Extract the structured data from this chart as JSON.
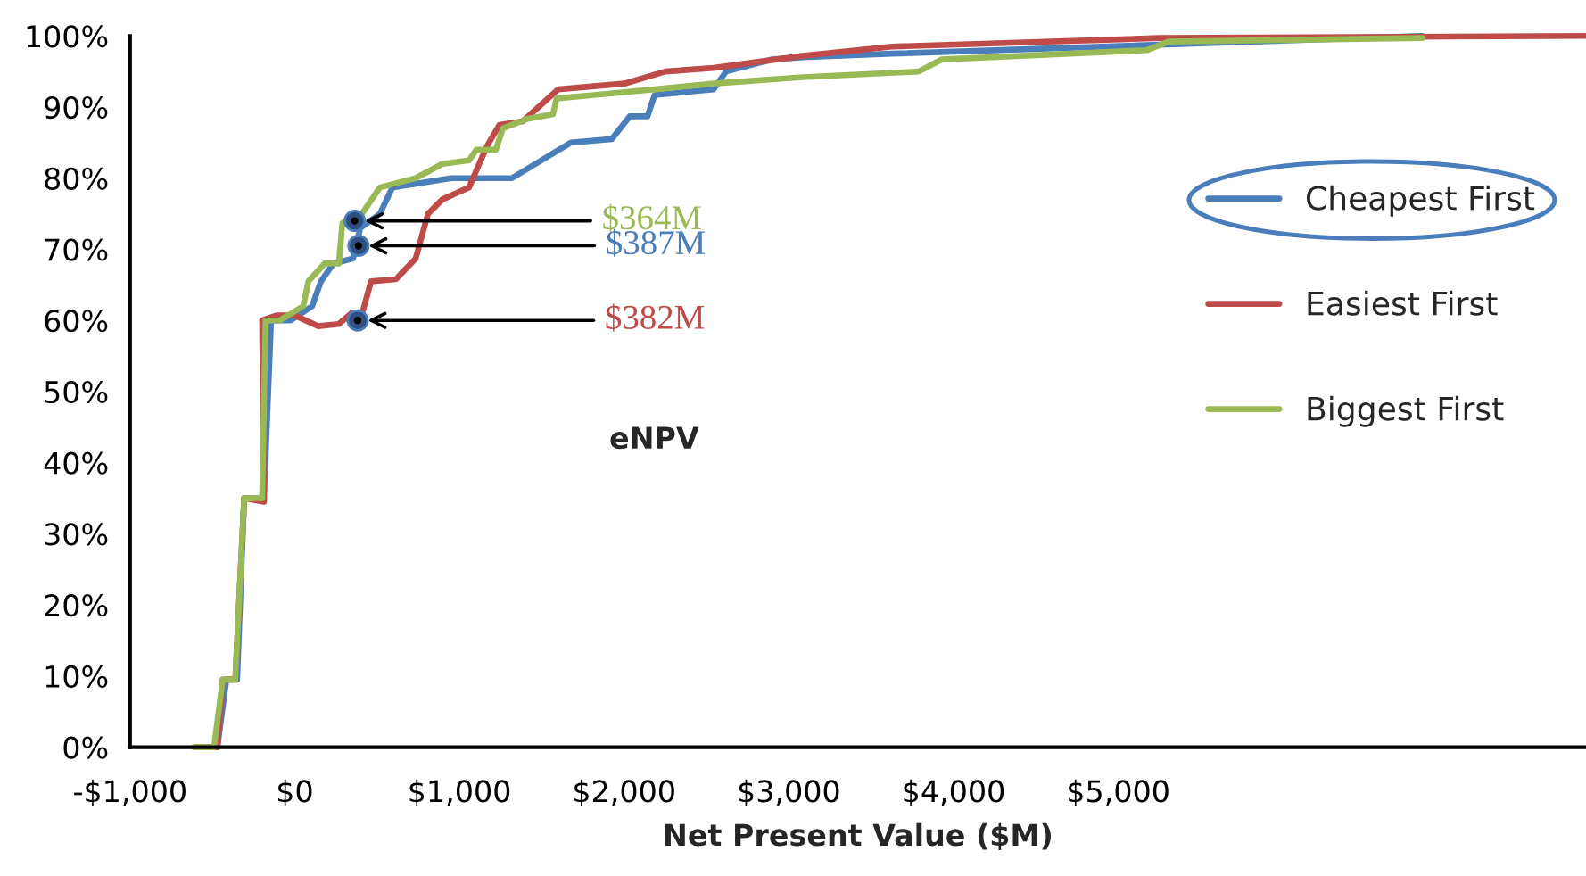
{
  "chart_data": {
    "type": "line",
    "xlabel": "Net Present Value ($M)",
    "xlim": [
      -1000,
      7840
    ],
    "ylim": [
      0,
      100
    ],
    "xticks": [
      {
        "value": -1000,
        "label": "-$1,000"
      },
      {
        "value": 0,
        "label": "$0"
      },
      {
        "value": 1000,
        "label": "$1,000"
      },
      {
        "value": 2000,
        "label": "$2,000"
      },
      {
        "value": 3000,
        "label": "$3,000"
      },
      {
        "value": 4000,
        "label": "$4,000"
      },
      {
        "value": 5000,
        "label": "$5,000"
      }
    ],
    "yticks": [
      {
        "value": 0,
        "label": "0%"
      },
      {
        "value": 10,
        "label": "10%"
      },
      {
        "value": 20,
        "label": "20%"
      },
      {
        "value": 30,
        "label": "30%"
      },
      {
        "value": 40,
        "label": "40%"
      },
      {
        "value": 50,
        "label": "50%"
      },
      {
        "value": 60,
        "label": "60%"
      },
      {
        "value": 70,
        "label": "70%"
      },
      {
        "value": 80,
        "label": "80%"
      },
      {
        "value": 90,
        "label": "90%"
      },
      {
        "value": 100,
        "label": "100%"
      }
    ],
    "grid": false,
    "legend": "right",
    "marker": "none",
    "line_style": "solid",
    "series": [
      {
        "name": "Cheapest First",
        "color": "#4a7ebb",
        "x": [
          -600,
          -470,
          -415,
          -350,
          -307,
          -187,
          -144,
          -25,
          105,
          159,
          235,
          354,
          398,
          517,
          593,
          950,
          1318,
          1676,
          1925,
          2034,
          2142,
          2185,
          2543,
          2619,
          2900,
          3084,
          3626,
          5250,
          6845
        ],
        "values": [
          0,
          0,
          9.5,
          9.5,
          35,
          35,
          60,
          60,
          62,
          65.5,
          68,
          68.7,
          73,
          75,
          78.7,
          80,
          80,
          85,
          85.5,
          88.7,
          88.7,
          91.7,
          92.5,
          95,
          96.7,
          97,
          97.5,
          null,
          100
        ]
      },
      {
        "name": "Easiest First",
        "color": "#be4b48",
        "x": [
          -600,
          -470,
          -437,
          -361,
          -307,
          -187,
          -198,
          -112,
          0,
          141,
          268,
          343,
          398,
          463,
          614,
          734,
          809,
          896,
          1058,
          1167,
          1243,
          1384,
          1600,
          2001,
          2250,
          2543,
          3084,
          3626,
          5250,
          7840
        ],
        "values": [
          0,
          0,
          9.5,
          9.5,
          35,
          34.5,
          60,
          60.7,
          60.7,
          59.2,
          59.5,
          61,
          60,
          65.5,
          65.8,
          68.7,
          75,
          77,
          78.7,
          84.5,
          87.5,
          88,
          92.5,
          93.3,
          95,
          95.5,
          97.2,
          98.5,
          99.7,
          100
        ]
      },
      {
        "name": "Biggest First",
        "color": "#98b954",
        "x": [
          -610,
          -490,
          -437,
          -361,
          -307,
          -198,
          -177,
          -90,
          51,
          83,
          181,
          268,
          289,
          408,
          517,
          734,
          896,
          1058,
          1102,
          1221,
          1264,
          1405,
          1568,
          1589,
          1817,
          2185,
          2543,
          3084,
          3789,
          3930,
          5176,
          5305,
          6845
        ],
        "values": [
          0,
          0,
          9.5,
          9.5,
          35,
          35,
          60,
          60,
          62,
          65.5,
          68,
          68,
          73.7,
          75,
          78.7,
          80,
          82,
          82.5,
          84,
          84,
          87,
          88.3,
          89,
          91.2,
          91.7,
          92.5,
          93.3,
          94.2,
          95,
          96.7,
          98,
          99.2,
          99.7
        ]
      }
    ],
    "annotations": [
      {
        "text": "$387M",
        "x": 387,
        "y": 70.5
      },
      {
        "text": "$382M",
        "x": 382,
        "y": 60
      },
      {
        "text": "$364M",
        "x": 364,
        "y": 74
      },
      "eNPV"
    ]
  }
}
